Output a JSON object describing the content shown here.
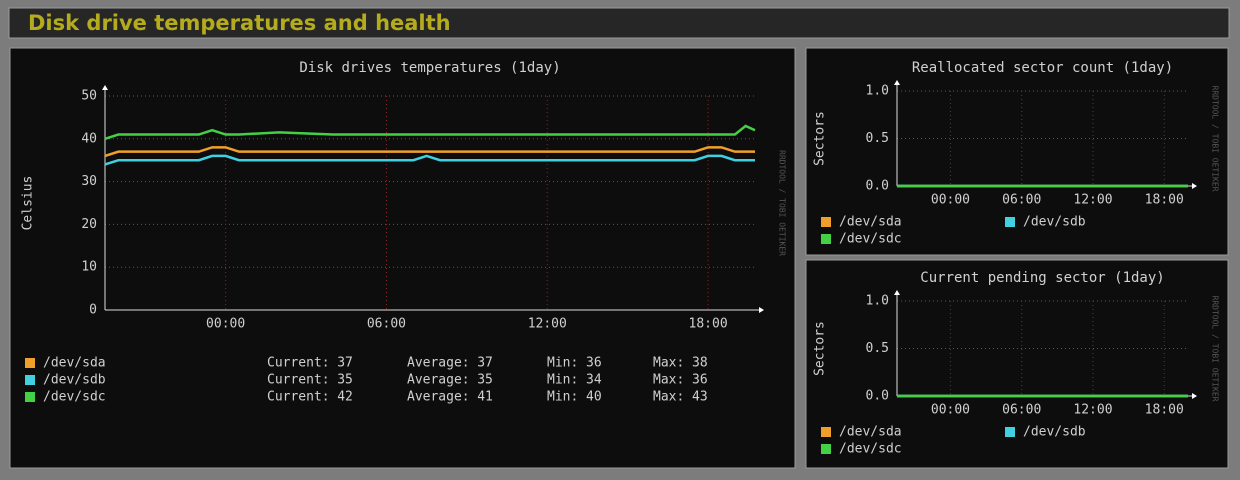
{
  "header": {
    "title": "Disk drive temperatures and health"
  },
  "chart_data": [
    {
      "type": "line",
      "title": "Disk drives temperatures  (1day)",
      "ylabel": "Celsius",
      "watermark": "RRDTOOL / TOBI OETIKER",
      "x": [
        -4.5,
        -4,
        -2,
        -1,
        -0.5,
        0,
        0.5,
        2,
        4,
        6,
        7,
        7.5,
        8,
        10,
        12,
        14,
        16,
        17.5,
        18,
        18.5,
        19,
        19.4,
        19.75
      ],
      "xlim": [
        -4.5,
        19.75
      ],
      "xticks": [
        {
          "value": 0,
          "label": "00:00"
        },
        {
          "value": 6,
          "label": "06:00"
        },
        {
          "value": 12,
          "label": "12:00"
        },
        {
          "value": 18,
          "label": "18:00"
        }
      ],
      "ylim": [
        0,
        50
      ],
      "yticks": [
        0,
        10,
        20,
        30,
        40,
        50
      ],
      "grid": true,
      "stat_labels": [
        "Current:",
        "Average:",
        "Min:",
        "Max:"
      ],
      "series": [
        {
          "name": "/dev/sda",
          "color": "#f0a028",
          "stats": [
            37,
            37,
            36,
            38
          ],
          "values": [
            36,
            37,
            37,
            37,
            38,
            38,
            37,
            37,
            37,
            37,
            37,
            37,
            37,
            37,
            37,
            37,
            37,
            37,
            38,
            38,
            37,
            37,
            37
          ]
        },
        {
          "name": "/dev/sdb",
          "color": "#40d0e0",
          "stats": [
            35,
            35,
            34,
            36
          ],
          "values": [
            34,
            35,
            35,
            35,
            36,
            36,
            35,
            35,
            35,
            35,
            35,
            36,
            35,
            35,
            35,
            35,
            35,
            35,
            36,
            36,
            35,
            35,
            35
          ]
        },
        {
          "name": "/dev/sdc",
          "color": "#44d044",
          "stats": [
            42,
            41,
            40,
            43
          ],
          "values": [
            40,
            41,
            41,
            41,
            42,
            41,
            41,
            41.5,
            41,
            41,
            41,
            41,
            41,
            41,
            41,
            41,
            41,
            41,
            41,
            41,
            41,
            43,
            42
          ]
        }
      ]
    },
    {
      "type": "line",
      "title": "Reallocated sector count  (1day)",
      "ylabel": "Sectors",
      "watermark": "RRDTOOL / TOBI OETIKER",
      "x": [
        -4.5,
        20
      ],
      "xlim": [
        -4.5,
        20
      ],
      "xticks": [
        {
          "value": 0,
          "label": "00:00"
        },
        {
          "value": 6,
          "label": "06:00"
        },
        {
          "value": 12,
          "label": "12:00"
        },
        {
          "value": 18,
          "label": "18:00"
        }
      ],
      "ylim": [
        0,
        1
      ],
      "yticks": [
        {
          "value": 0,
          "label": "0.0"
        },
        {
          "value": 0.5,
          "label": "0.5"
        },
        {
          "value": 1,
          "label": "1.0"
        }
      ],
      "grid": true,
      "series": [
        {
          "name": "/dev/sda",
          "color": "#f0a028",
          "values": [
            0,
            0
          ]
        },
        {
          "name": "/dev/sdb",
          "color": "#40d0e0",
          "values": [
            0,
            0
          ]
        },
        {
          "name": "/dev/sdc",
          "color": "#44d044",
          "values": [
            0,
            0
          ]
        }
      ]
    },
    {
      "type": "line",
      "title": "Current pending sector  (1day)",
      "ylabel": "Sectors",
      "watermark": "RRDTOOL / TOBI OETIKER",
      "x": [
        -4.5,
        20
      ],
      "xlim": [
        -4.5,
        20
      ],
      "xticks": [
        {
          "value": 0,
          "label": "00:00"
        },
        {
          "value": 6,
          "label": "06:00"
        },
        {
          "value": 12,
          "label": "12:00"
        },
        {
          "value": 18,
          "label": "18:00"
        }
      ],
      "ylim": [
        0,
        1
      ],
      "yticks": [
        {
          "value": 0,
          "label": "0.0"
        },
        {
          "value": 0.5,
          "label": "0.5"
        },
        {
          "value": 1,
          "label": "1.0"
        }
      ],
      "grid": true,
      "series": [
        {
          "name": "/dev/sda",
          "color": "#f0a028",
          "values": [
            0,
            0
          ]
        },
        {
          "name": "/dev/sdb",
          "color": "#40d0e0",
          "values": [
            0,
            0
          ]
        },
        {
          "name": "/dev/sdc",
          "color": "#44d044",
          "values": [
            0,
            0
          ]
        }
      ]
    }
  ]
}
